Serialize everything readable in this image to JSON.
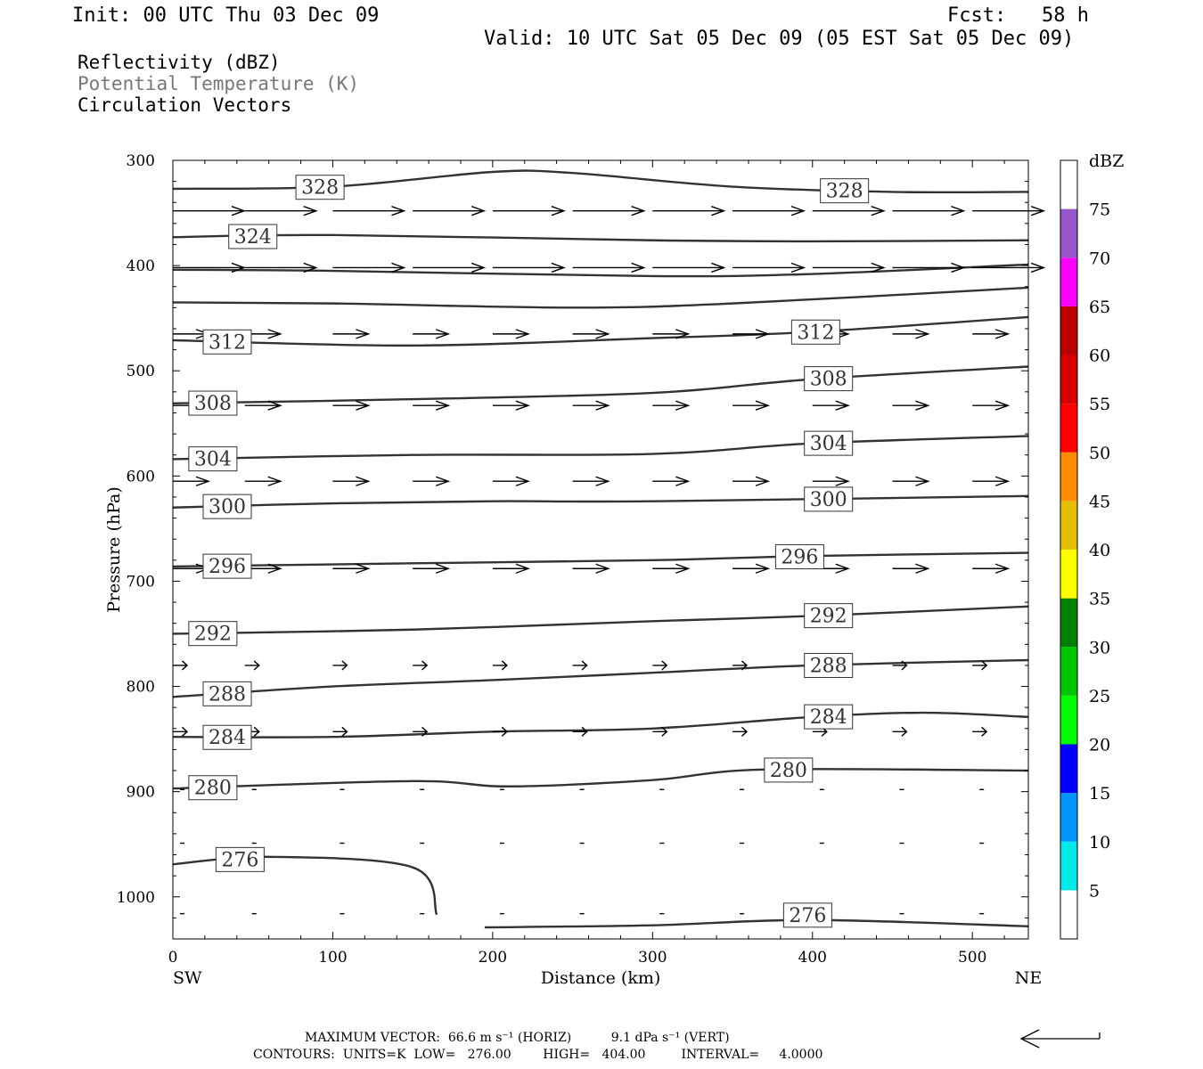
{
  "header": {
    "init": "Init: 00 UTC Thu 03 Dec 09",
    "fcst": "Fcst:   58 h",
    "valid": "Valid: 10 UTC Sat 05 Dec 09 (05 EST Sat 05 Dec 09)"
  },
  "fields": {
    "reflectivity": "Reflectivity (dBZ)",
    "theta": "Potential Temperature (K)",
    "vectors": "Circulation Vectors"
  },
  "footer": {
    "max_vector": "MAXIMUM VECTOR:  66.6 m s⁻¹ (HORIZ)          9.1 dPa s⁻¹ (VERT)",
    "contours": "CONTOURS:  UNITS=K  LOW=   276.00        HIGH=   404.00         INTERVAL=     4.0000"
  },
  "colors": {
    "contour": "#333333",
    "scale": [
      "#00e8e8",
      "#0096ff",
      "#0000ff",
      "#00ff00",
      "#00c800",
      "#008000",
      "#ffff00",
      "#e6be00",
      "#ff8c00",
      "#ff0000",
      "#d70000",
      "#bb0000",
      "#ff00ff",
      "#9655c8"
    ]
  },
  "chart_data": {
    "type": "cross-section",
    "xlabel": "Distance (km)",
    "ylabel": "Pressure (hPa)",
    "xlim": [
      0,
      535
    ],
    "ylim": [
      1040,
      300
    ],
    "xticks": [
      0,
      100,
      200,
      300,
      400,
      500
    ],
    "yticks": [
      300,
      400,
      500,
      600,
      700,
      800,
      900,
      1000
    ],
    "x_end_labels": [
      "SW",
      "NE"
    ],
    "colorbar": {
      "title": "dBZ",
      "levels": [
        5,
        10,
        15,
        20,
        25,
        30,
        35,
        40,
        45,
        50,
        55,
        60,
        65,
        70,
        75
      ],
      "range": [
        0,
        80
      ]
    },
    "contours": [
      {
        "value": 328,
        "label": "328",
        "labels_at": [
          92,
          420
        ],
        "points": [
          [
            0,
            327
          ],
          [
            100,
            325
          ],
          [
            200,
            311
          ],
          [
            250,
            312
          ],
          [
            350,
            325
          ],
          [
            450,
            330
          ],
          [
            535,
            330
          ]
        ]
      },
      {
        "value": 324,
        "label": "324",
        "labels_at": [
          50
        ],
        "points": [
          [
            0,
            373
          ],
          [
            100,
            371
          ],
          [
            300,
            376
          ],
          [
            400,
            377
          ],
          [
            535,
            376
          ]
        ]
      },
      {
        "value": 320,
        "label": "",
        "labels_at": [],
        "points": [
          [
            0,
            404
          ],
          [
            100,
            405
          ],
          [
            300,
            410
          ],
          [
            400,
            408
          ],
          [
            535,
            399
          ]
        ]
      },
      {
        "value": 316,
        "label": "",
        "labels_at": [],
        "points": [
          [
            0,
            435
          ],
          [
            100,
            436
          ],
          [
            250,
            440
          ],
          [
            350,
            436
          ],
          [
            535,
            421
          ]
        ]
      },
      {
        "value": 312,
        "label": "312",
        "labels_at": [
          34,
          402
        ],
        "points": [
          [
            0,
            471
          ],
          [
            150,
            476
          ],
          [
            300,
            469
          ],
          [
            400,
            463
          ],
          [
            535,
            449
          ]
        ]
      },
      {
        "value": 308,
        "label": "308",
        "labels_at": [
          25,
          410
        ],
        "points": [
          [
            0,
            531
          ],
          [
            150,
            527
          ],
          [
            300,
            521
          ],
          [
            400,
            508
          ],
          [
            535,
            496
          ]
        ]
      },
      {
        "value": 304,
        "label": "304",
        "labels_at": [
          25,
          410
        ],
        "points": [
          [
            0,
            584
          ],
          [
            150,
            580
          ],
          [
            300,
            579
          ],
          [
            400,
            569
          ],
          [
            535,
            562
          ]
        ]
      },
      {
        "value": 300,
        "label": "300",
        "labels_at": [
          34,
          410
        ],
        "points": [
          [
            0,
            630
          ],
          [
            100,
            626
          ],
          [
            200,
            624
          ],
          [
            300,
            624
          ],
          [
            535,
            619
          ]
        ]
      },
      {
        "value": 296,
        "label": "296",
        "labels_at": [
          34,
          392
        ],
        "points": [
          [
            0,
            686
          ],
          [
            150,
            683
          ],
          [
            300,
            680
          ],
          [
            400,
            676
          ],
          [
            535,
            673
          ]
        ]
      },
      {
        "value": 292,
        "label": "292",
        "labels_at": [
          25,
          410
        ],
        "points": [
          [
            0,
            750
          ],
          [
            150,
            746
          ],
          [
            300,
            738
          ],
          [
            400,
            733
          ],
          [
            535,
            724
          ]
        ]
      },
      {
        "value": 288,
        "label": "288",
        "labels_at": [
          34,
          410
        ],
        "points": [
          [
            0,
            810
          ],
          [
            100,
            800
          ],
          [
            200,
            794
          ],
          [
            300,
            787
          ],
          [
            400,
            780
          ],
          [
            535,
            775
          ]
        ]
      },
      {
        "value": 284,
        "label": "284",
        "labels_at": [
          34,
          410
        ],
        "points": [
          [
            0,
            848
          ],
          [
            100,
            848
          ],
          [
            200,
            843
          ],
          [
            300,
            840
          ],
          [
            400,
            829
          ],
          [
            470,
            825
          ],
          [
            535,
            829
          ]
        ]
      },
      {
        "value": 280,
        "label": "280",
        "labels_at": [
          25,
          385
        ],
        "points": [
          [
            0,
            897
          ],
          [
            150,
            890
          ],
          [
            210,
            895
          ],
          [
            300,
            889
          ],
          [
            370,
            879
          ],
          [
            535,
            880
          ]
        ]
      },
      {
        "value": 276,
        "label": "276",
        "labels_at": [
          42,
          397
        ],
        "points": [
          [
            0,
            969
          ],
          [
            60,
            962
          ],
          [
            150,
            972
          ],
          [
            165,
            1017
          ]
        ]
      },
      {
        "value": 276,
        "label": "",
        "labels_at": [],
        "points": [
          [
            195,
            1029
          ],
          [
            300,
            1027
          ],
          [
            400,
            1022
          ],
          [
            535,
            1028
          ]
        ]
      }
    ],
    "vector_rows": [
      {
        "p": 348,
        "speed_class": "strong"
      },
      {
        "p": 402,
        "speed_class": "strong"
      },
      {
        "p": 465,
        "speed_class": "moderate"
      },
      {
        "p": 533,
        "speed_class": "moderate"
      },
      {
        "p": 605,
        "speed_class": "moderate"
      },
      {
        "p": 688,
        "speed_class": "moderate"
      },
      {
        "p": 780,
        "speed_class": "weak"
      },
      {
        "p": 843,
        "speed_class": "weak"
      },
      {
        "p": 898,
        "speed_class": "calm"
      },
      {
        "p": 949,
        "speed_class": "calm"
      },
      {
        "p": 1016,
        "speed_class": "calm"
      }
    ]
  }
}
